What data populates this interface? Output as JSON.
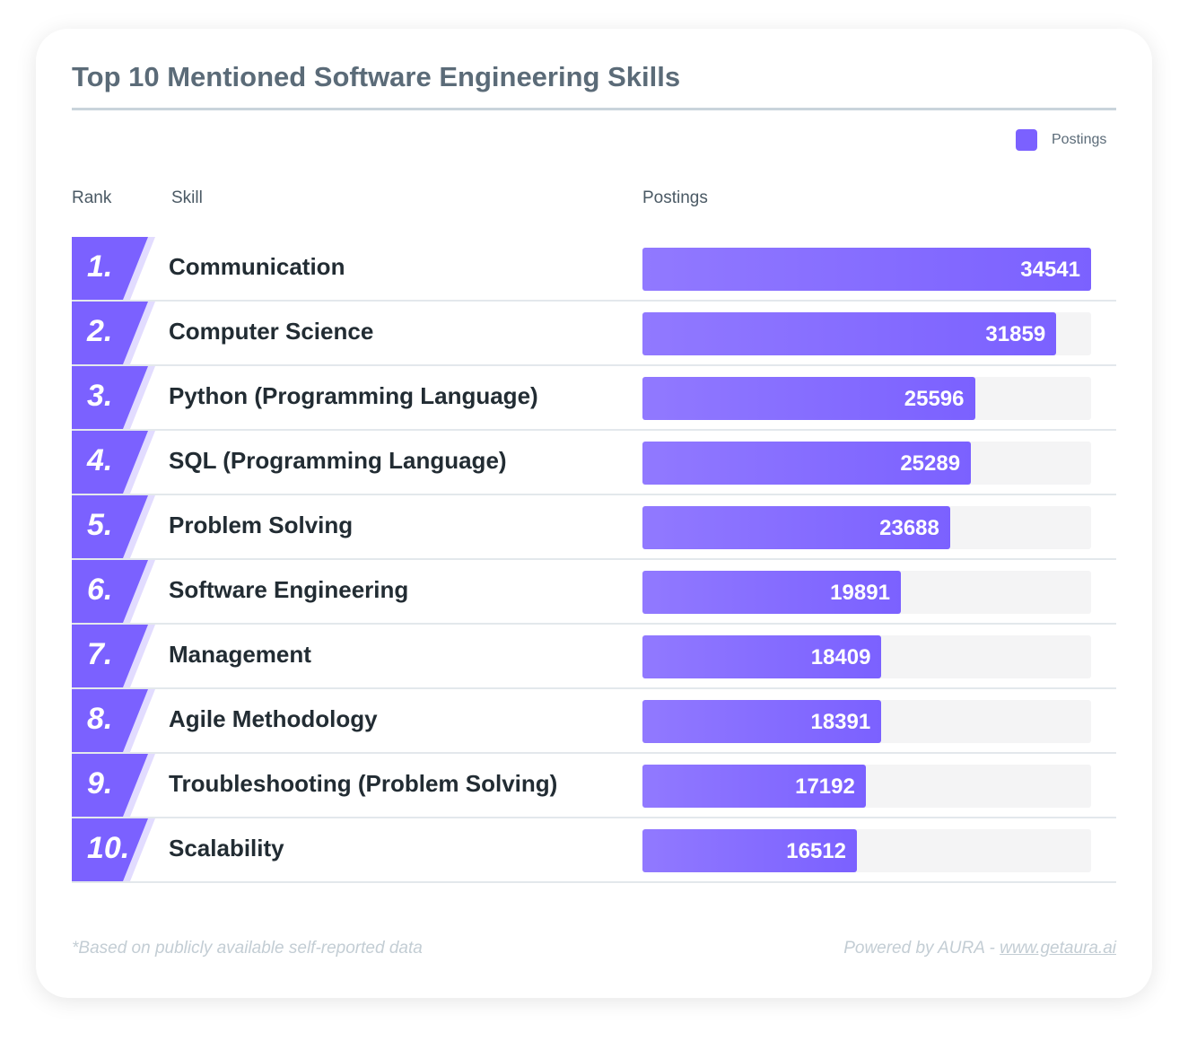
{
  "chart_data": {
    "type": "bar",
    "title": "Top 10 Mentioned Software Engineering Skills",
    "legend": {
      "label": "Postings",
      "position": "top-right"
    },
    "columns": {
      "rank": "Rank",
      "skill": "Skill",
      "value": "Postings"
    },
    "ranks": [
      "1.",
      "2.",
      "3.",
      "4.",
      "5.",
      "6.",
      "7.",
      "8.",
      "9.",
      "10."
    ],
    "categories": [
      "Communication",
      "Computer Science",
      "Python (Programming Language)",
      "SQL (Programming Language)",
      "Problem Solving",
      "Software Engineering",
      "Management",
      "Agile Methodology",
      "Troubleshooting (Problem Solving)",
      "Scalability"
    ],
    "series": [
      {
        "name": "Postings",
        "values": [
          34541,
          31859,
          25596,
          25289,
          23688,
          19891,
          18409,
          18391,
          17192,
          16512
        ]
      }
    ],
    "xlim": [
      0,
      34541
    ],
    "color": "#7b61ff"
  },
  "footer": {
    "note": "*Based on publicly available self-reported data",
    "powered": "Powered by AURA - ",
    "link": "www.getaura.ai"
  }
}
